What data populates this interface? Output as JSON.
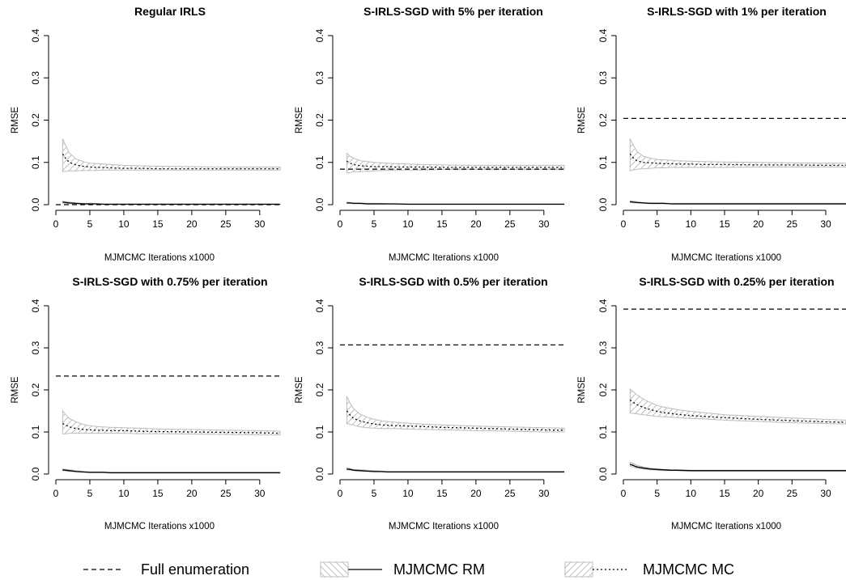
{
  "chart_data": [
    {
      "type": "line",
      "title": "Regular IRLS",
      "xlabel": "MJMCMC Iterations x1000",
      "ylabel": "RMSE",
      "xlim": [
        0,
        33
      ],
      "ylim": [
        0,
        0.4
      ],
      "xticks": [
        "0",
        "5",
        "10",
        "15",
        "20",
        "25",
        "30"
      ],
      "yticks": [
        "0.0",
        "0.1",
        "0.2",
        "0.3",
        "0.4"
      ],
      "full_enumeration": 0.0,
      "x": [
        1,
        1.5,
        2,
        3,
        4,
        5,
        6,
        7,
        8,
        10,
        12,
        15,
        20,
        25,
        30,
        33
      ],
      "mc_mean": [
        0.12,
        0.108,
        0.1,
        0.094,
        0.091,
        0.089,
        0.088,
        0.088,
        0.087,
        0.086,
        0.086,
        0.085,
        0.085,
        0.085,
        0.085,
        0.085
      ],
      "mc_lower": [
        0.078,
        0.079,
        0.08,
        0.08,
        0.081,
        0.081,
        0.081,
        0.082,
        0.082,
        0.082,
        0.082,
        0.082,
        0.082,
        0.082,
        0.082,
        0.082
      ],
      "mc_upper": [
        0.156,
        0.138,
        0.122,
        0.108,
        0.102,
        0.098,
        0.097,
        0.096,
        0.095,
        0.093,
        0.092,
        0.091,
        0.09,
        0.089,
        0.089,
        0.089
      ],
      "rm_mean": [
        0.006,
        0.005,
        0.004,
        0.003,
        0.002,
        0.002,
        0.002,
        0.001,
        0.001,
        0.001,
        0.001,
        0.001,
        0.001,
        0.001,
        0.001,
        0.001
      ],
      "rm_lower": [
        0.004,
        0.003,
        0.002,
        0.002,
        0.001,
        0.001,
        0.001,
        0.001,
        0.001,
        0.001,
        0.001,
        0.001,
        0.001,
        0.001,
        0.001,
        0.001
      ],
      "rm_upper": [
        0.008,
        0.007,
        0.006,
        0.004,
        0.003,
        0.003,
        0.002,
        0.002,
        0.002,
        0.002,
        0.002,
        0.002,
        0.002,
        0.002,
        0.002,
        0.002
      ]
    },
    {
      "type": "line",
      "title": "S-IRLS-SGD with 5% per iteration",
      "xlabel": "MJMCMC Iterations x1000",
      "ylabel": "RMSE",
      "xlim": [
        0,
        33
      ],
      "ylim": [
        0,
        0.4
      ],
      "xticks": [
        "0",
        "5",
        "10",
        "15",
        "20",
        "25",
        "30"
      ],
      "yticks": [
        "0.0",
        "0.1",
        "0.2",
        "0.3",
        "0.4"
      ],
      "full_enumeration": 0.084,
      "x": [
        1,
        1.5,
        2,
        3,
        4,
        5,
        6,
        7,
        8,
        10,
        12,
        15,
        20,
        25,
        30,
        33
      ],
      "mc_mean": [
        0.103,
        0.098,
        0.095,
        0.092,
        0.091,
        0.09,
        0.09,
        0.09,
        0.089,
        0.089,
        0.089,
        0.088,
        0.088,
        0.088,
        0.088,
        0.088
      ],
      "mc_lower": [
        0.075,
        0.076,
        0.078,
        0.078,
        0.079,
        0.08,
        0.081,
        0.081,
        0.082,
        0.082,
        0.082,
        0.083,
        0.083,
        0.083,
        0.083,
        0.083
      ],
      "mc_upper": [
        0.122,
        0.114,
        0.11,
        0.104,
        0.102,
        0.1,
        0.099,
        0.098,
        0.097,
        0.096,
        0.095,
        0.094,
        0.093,
        0.093,
        0.093,
        0.093
      ],
      "rm_mean": [
        0.004,
        0.004,
        0.003,
        0.003,
        0.002,
        0.002,
        0.002,
        0.002,
        0.002,
        0.001,
        0.001,
        0.001,
        0.001,
        0.001,
        0.001,
        0.001
      ],
      "rm_lower": [
        0.003,
        0.003,
        0.002,
        0.002,
        0.001,
        0.001,
        0.001,
        0.001,
        0.001,
        0.001,
        0.001,
        0.001,
        0.001,
        0.001,
        0.001,
        0.001
      ],
      "rm_upper": [
        0.006,
        0.005,
        0.004,
        0.004,
        0.003,
        0.003,
        0.003,
        0.002,
        0.002,
        0.002,
        0.002,
        0.002,
        0.002,
        0.002,
        0.002,
        0.002
      ]
    },
    {
      "type": "line",
      "title": "S-IRLS-SGD with 1% per iteration",
      "xlabel": "MJMCMC Iterations x1000",
      "ylabel": "RMSE",
      "xlim": [
        0,
        33
      ],
      "ylim": [
        0,
        0.4
      ],
      "xticks": [
        "0",
        "5",
        "10",
        "15",
        "20",
        "25",
        "30"
      ],
      "yticks": [
        "0.0",
        "0.1",
        "0.2",
        "0.3",
        "0.4"
      ],
      "full_enumeration": 0.204,
      "x": [
        1,
        1.5,
        2,
        3,
        4,
        5,
        6,
        7,
        8,
        10,
        12,
        15,
        20,
        25,
        30,
        33
      ],
      "mc_mean": [
        0.12,
        0.11,
        0.104,
        0.1,
        0.099,
        0.098,
        0.097,
        0.097,
        0.096,
        0.096,
        0.095,
        0.095,
        0.094,
        0.094,
        0.093,
        0.093
      ],
      "mc_lower": [
        0.08,
        0.082,
        0.084,
        0.085,
        0.086,
        0.087,
        0.087,
        0.088,
        0.088,
        0.088,
        0.088,
        0.088,
        0.089,
        0.089,
        0.089,
        0.089
      ],
      "mc_upper": [
        0.156,
        0.14,
        0.126,
        0.114,
        0.11,
        0.107,
        0.106,
        0.105,
        0.104,
        0.103,
        0.102,
        0.101,
        0.1,
        0.099,
        0.098,
        0.098
      ],
      "rm_mean": [
        0.007,
        0.006,
        0.005,
        0.004,
        0.003,
        0.003,
        0.003,
        0.002,
        0.002,
        0.002,
        0.002,
        0.002,
        0.002,
        0.002,
        0.002,
        0.002
      ],
      "rm_lower": [
        0.005,
        0.004,
        0.004,
        0.003,
        0.002,
        0.002,
        0.002,
        0.002,
        0.001,
        0.001,
        0.001,
        0.001,
        0.001,
        0.001,
        0.001,
        0.001
      ],
      "rm_upper": [
        0.009,
        0.008,
        0.007,
        0.005,
        0.004,
        0.004,
        0.004,
        0.003,
        0.003,
        0.003,
        0.003,
        0.003,
        0.003,
        0.003,
        0.003,
        0.003
      ]
    },
    {
      "type": "line",
      "title": "S-IRLS-SGD with 0.75% per iteration",
      "xlabel": "MJMCMC Iterations x1000",
      "ylabel": "RMSE",
      "xlim": [
        0,
        33
      ],
      "ylim": [
        0,
        0.4
      ],
      "xticks": [
        "0",
        "5",
        "10",
        "15",
        "20",
        "25",
        "30"
      ],
      "yticks": [
        "0.0",
        "0.1",
        "0.2",
        "0.3",
        "0.4"
      ],
      "full_enumeration": 0.233,
      "x": [
        1,
        1.5,
        2,
        3,
        4,
        5,
        6,
        7,
        8,
        10,
        12,
        15,
        20,
        25,
        30,
        33
      ],
      "mc_mean": [
        0.12,
        0.116,
        0.112,
        0.108,
        0.106,
        0.105,
        0.104,
        0.104,
        0.103,
        0.103,
        0.102,
        0.101,
        0.1,
        0.099,
        0.098,
        0.097
      ],
      "mc_lower": [
        0.095,
        0.096,
        0.097,
        0.097,
        0.097,
        0.097,
        0.097,
        0.097,
        0.097,
        0.097,
        0.096,
        0.096,
        0.095,
        0.094,
        0.093,
        0.093
      ],
      "mc_upper": [
        0.15,
        0.14,
        0.132,
        0.124,
        0.118,
        0.115,
        0.113,
        0.112,
        0.111,
        0.11,
        0.109,
        0.107,
        0.106,
        0.104,
        0.103,
        0.102
      ],
      "rm_mean": [
        0.01,
        0.009,
        0.008,
        0.006,
        0.005,
        0.004,
        0.004,
        0.004,
        0.003,
        0.003,
        0.003,
        0.003,
        0.003,
        0.003,
        0.003,
        0.003
      ],
      "rm_lower": [
        0.008,
        0.007,
        0.006,
        0.005,
        0.004,
        0.003,
        0.003,
        0.003,
        0.002,
        0.002,
        0.002,
        0.002,
        0.002,
        0.002,
        0.002,
        0.002
      ],
      "rm_upper": [
        0.012,
        0.011,
        0.01,
        0.008,
        0.006,
        0.005,
        0.005,
        0.005,
        0.004,
        0.004,
        0.004,
        0.004,
        0.004,
        0.004,
        0.004,
        0.004
      ]
    },
    {
      "type": "line",
      "title": "S-IRLS-SGD with 0.5% per iteration",
      "xlabel": "MJMCMC Iterations x1000",
      "ylabel": "RMSE",
      "xlim": [
        0,
        33
      ],
      "ylim": [
        0,
        0.4
      ],
      "xticks": [
        "0",
        "5",
        "10",
        "15",
        "20",
        "25",
        "30"
      ],
      "yticks": [
        "0.0",
        "0.1",
        "0.2",
        "0.3",
        "0.4"
      ],
      "full_enumeration": 0.307,
      "x": [
        1,
        1.5,
        2,
        3,
        4,
        5,
        6,
        7,
        8,
        10,
        12,
        15,
        20,
        25,
        30,
        33
      ],
      "mc_mean": [
        0.15,
        0.14,
        0.132,
        0.126,
        0.122,
        0.119,
        0.117,
        0.116,
        0.115,
        0.114,
        0.113,
        0.111,
        0.109,
        0.107,
        0.105,
        0.104
      ],
      "mc_lower": [
        0.12,
        0.118,
        0.116,
        0.112,
        0.11,
        0.109,
        0.108,
        0.108,
        0.108,
        0.107,
        0.106,
        0.105,
        0.103,
        0.102,
        0.1,
        0.1
      ],
      "mc_upper": [
        0.185,
        0.168,
        0.155,
        0.142,
        0.135,
        0.13,
        0.127,
        0.125,
        0.123,
        0.121,
        0.119,
        0.117,
        0.114,
        0.112,
        0.11,
        0.109
      ],
      "rm_mean": [
        0.012,
        0.011,
        0.009,
        0.008,
        0.007,
        0.006,
        0.006,
        0.005,
        0.005,
        0.005,
        0.005,
        0.005,
        0.005,
        0.005,
        0.005,
        0.005
      ],
      "rm_lower": [
        0.01,
        0.009,
        0.008,
        0.007,
        0.006,
        0.005,
        0.005,
        0.004,
        0.004,
        0.004,
        0.004,
        0.004,
        0.004,
        0.004,
        0.004,
        0.004
      ],
      "rm_upper": [
        0.015,
        0.013,
        0.011,
        0.01,
        0.009,
        0.008,
        0.007,
        0.006,
        0.006,
        0.006,
        0.006,
        0.006,
        0.006,
        0.006,
        0.006,
        0.006
      ]
    },
    {
      "type": "line",
      "title": "S-IRLS-SGD with 0.25% per iteration",
      "xlabel": "MJMCMC Iterations x1000",
      "ylabel": "RMSE",
      "xlim": [
        0,
        33
      ],
      "ylim": [
        0,
        0.4
      ],
      "xticks": [
        "0",
        "5",
        "10",
        "15",
        "20",
        "25",
        "30"
      ],
      "yticks": [
        "0.0",
        "0.1",
        "0.2",
        "0.3",
        "0.4"
      ],
      "full_enumeration": 0.392,
      "x": [
        1,
        1.5,
        2,
        3,
        4,
        5,
        6,
        7,
        8,
        10,
        12,
        15,
        20,
        25,
        30,
        33
      ],
      "mc_mean": [
        0.176,
        0.17,
        0.165,
        0.158,
        0.153,
        0.149,
        0.146,
        0.144,
        0.142,
        0.139,
        0.137,
        0.134,
        0.13,
        0.127,
        0.124,
        0.123
      ],
      "mc_lower": [
        0.145,
        0.144,
        0.143,
        0.141,
        0.139,
        0.137,
        0.136,
        0.135,
        0.134,
        0.132,
        0.131,
        0.128,
        0.125,
        0.122,
        0.12,
        0.119
      ],
      "mc_upper": [
        0.202,
        0.195,
        0.188,
        0.178,
        0.17,
        0.163,
        0.159,
        0.156,
        0.153,
        0.149,
        0.146,
        0.141,
        0.137,
        0.133,
        0.13,
        0.128
      ],
      "rm_mean": [
        0.023,
        0.02,
        0.017,
        0.014,
        0.012,
        0.011,
        0.01,
        0.009,
        0.009,
        0.008,
        0.008,
        0.008,
        0.008,
        0.008,
        0.008,
        0.008
      ],
      "rm_lower": [
        0.019,
        0.016,
        0.014,
        0.012,
        0.01,
        0.009,
        0.008,
        0.008,
        0.008,
        0.007,
        0.007,
        0.007,
        0.007,
        0.007,
        0.007,
        0.007
      ],
      "rm_upper": [
        0.028,
        0.025,
        0.021,
        0.017,
        0.014,
        0.012,
        0.011,
        0.01,
        0.01,
        0.009,
        0.009,
        0.009,
        0.009,
        0.009,
        0.009,
        0.009
      ]
    }
  ],
  "legend": {
    "placement": "bottom",
    "items": [
      {
        "key": "full_enumeration",
        "label": "Full enumeration"
      },
      {
        "key": "rm",
        "label": "MJMCMC RM"
      },
      {
        "key": "mc",
        "label": "MJMCMC MC"
      }
    ]
  },
  "colors": {
    "band_stroke": "#bdbdbd",
    "line": "#000000",
    "axis": "#000000"
  }
}
